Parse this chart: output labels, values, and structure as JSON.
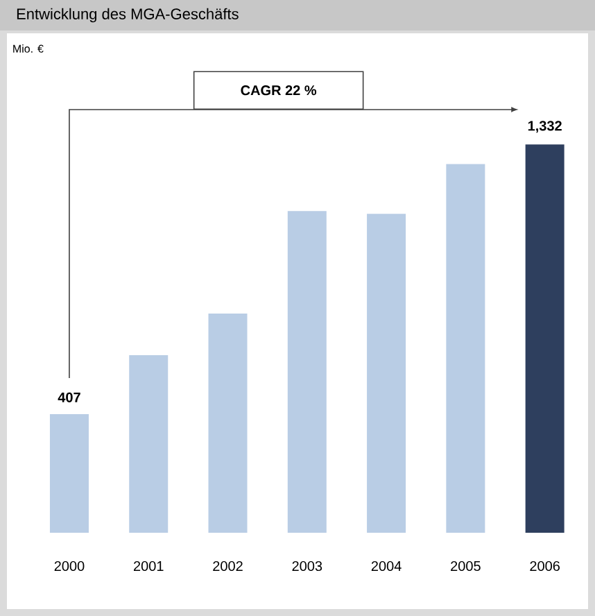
{
  "chart_data": {
    "type": "bar",
    "title": "Entwicklung des MGA-Geschäfts",
    "categories": [
      "2000",
      "2001",
      "2002",
      "2003",
      "2004",
      "2005",
      "2006"
    ],
    "values": [
      407,
      609,
      752,
      1104,
      1094,
      1265,
      1332
    ],
    "colors": [
      "#b9cde5",
      "#b9cde5",
      "#b9cde5",
      "#b9cde5",
      "#b9cde5",
      "#b9cde5",
      "#2e3f5e"
    ],
    "value_labels": [
      "407",
      null,
      null,
      null,
      null,
      null,
      "1,332"
    ],
    "annotations": [
      "Mio. €",
      "CAGR 22 %"
    ]
  }
}
